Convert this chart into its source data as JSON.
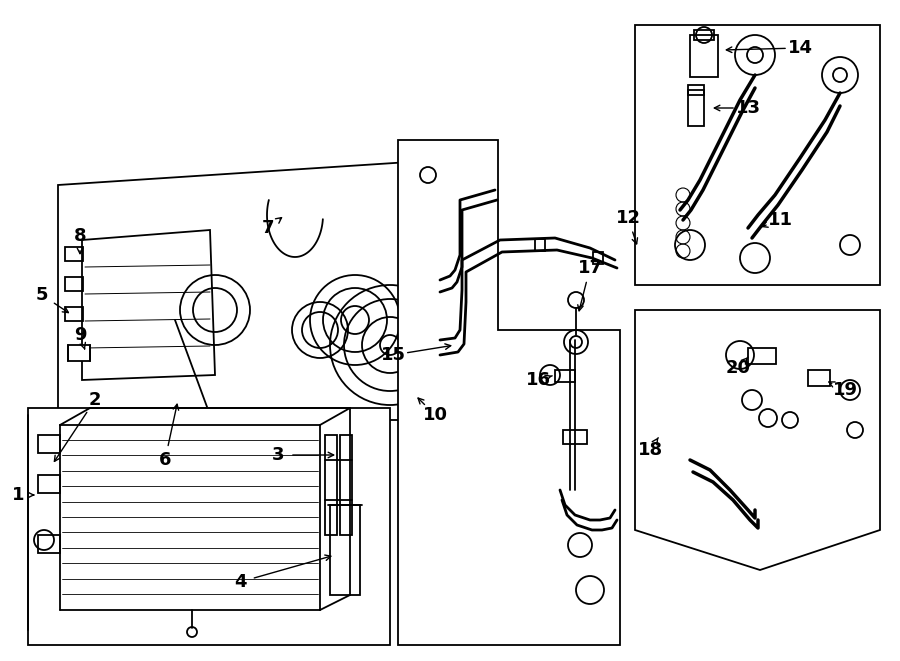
{
  "bg_color": "#ffffff",
  "line_color": "#000000",
  "lw": 1.3,
  "fig_w": 9.0,
  "fig_h": 6.61,
  "dpi": 100
}
